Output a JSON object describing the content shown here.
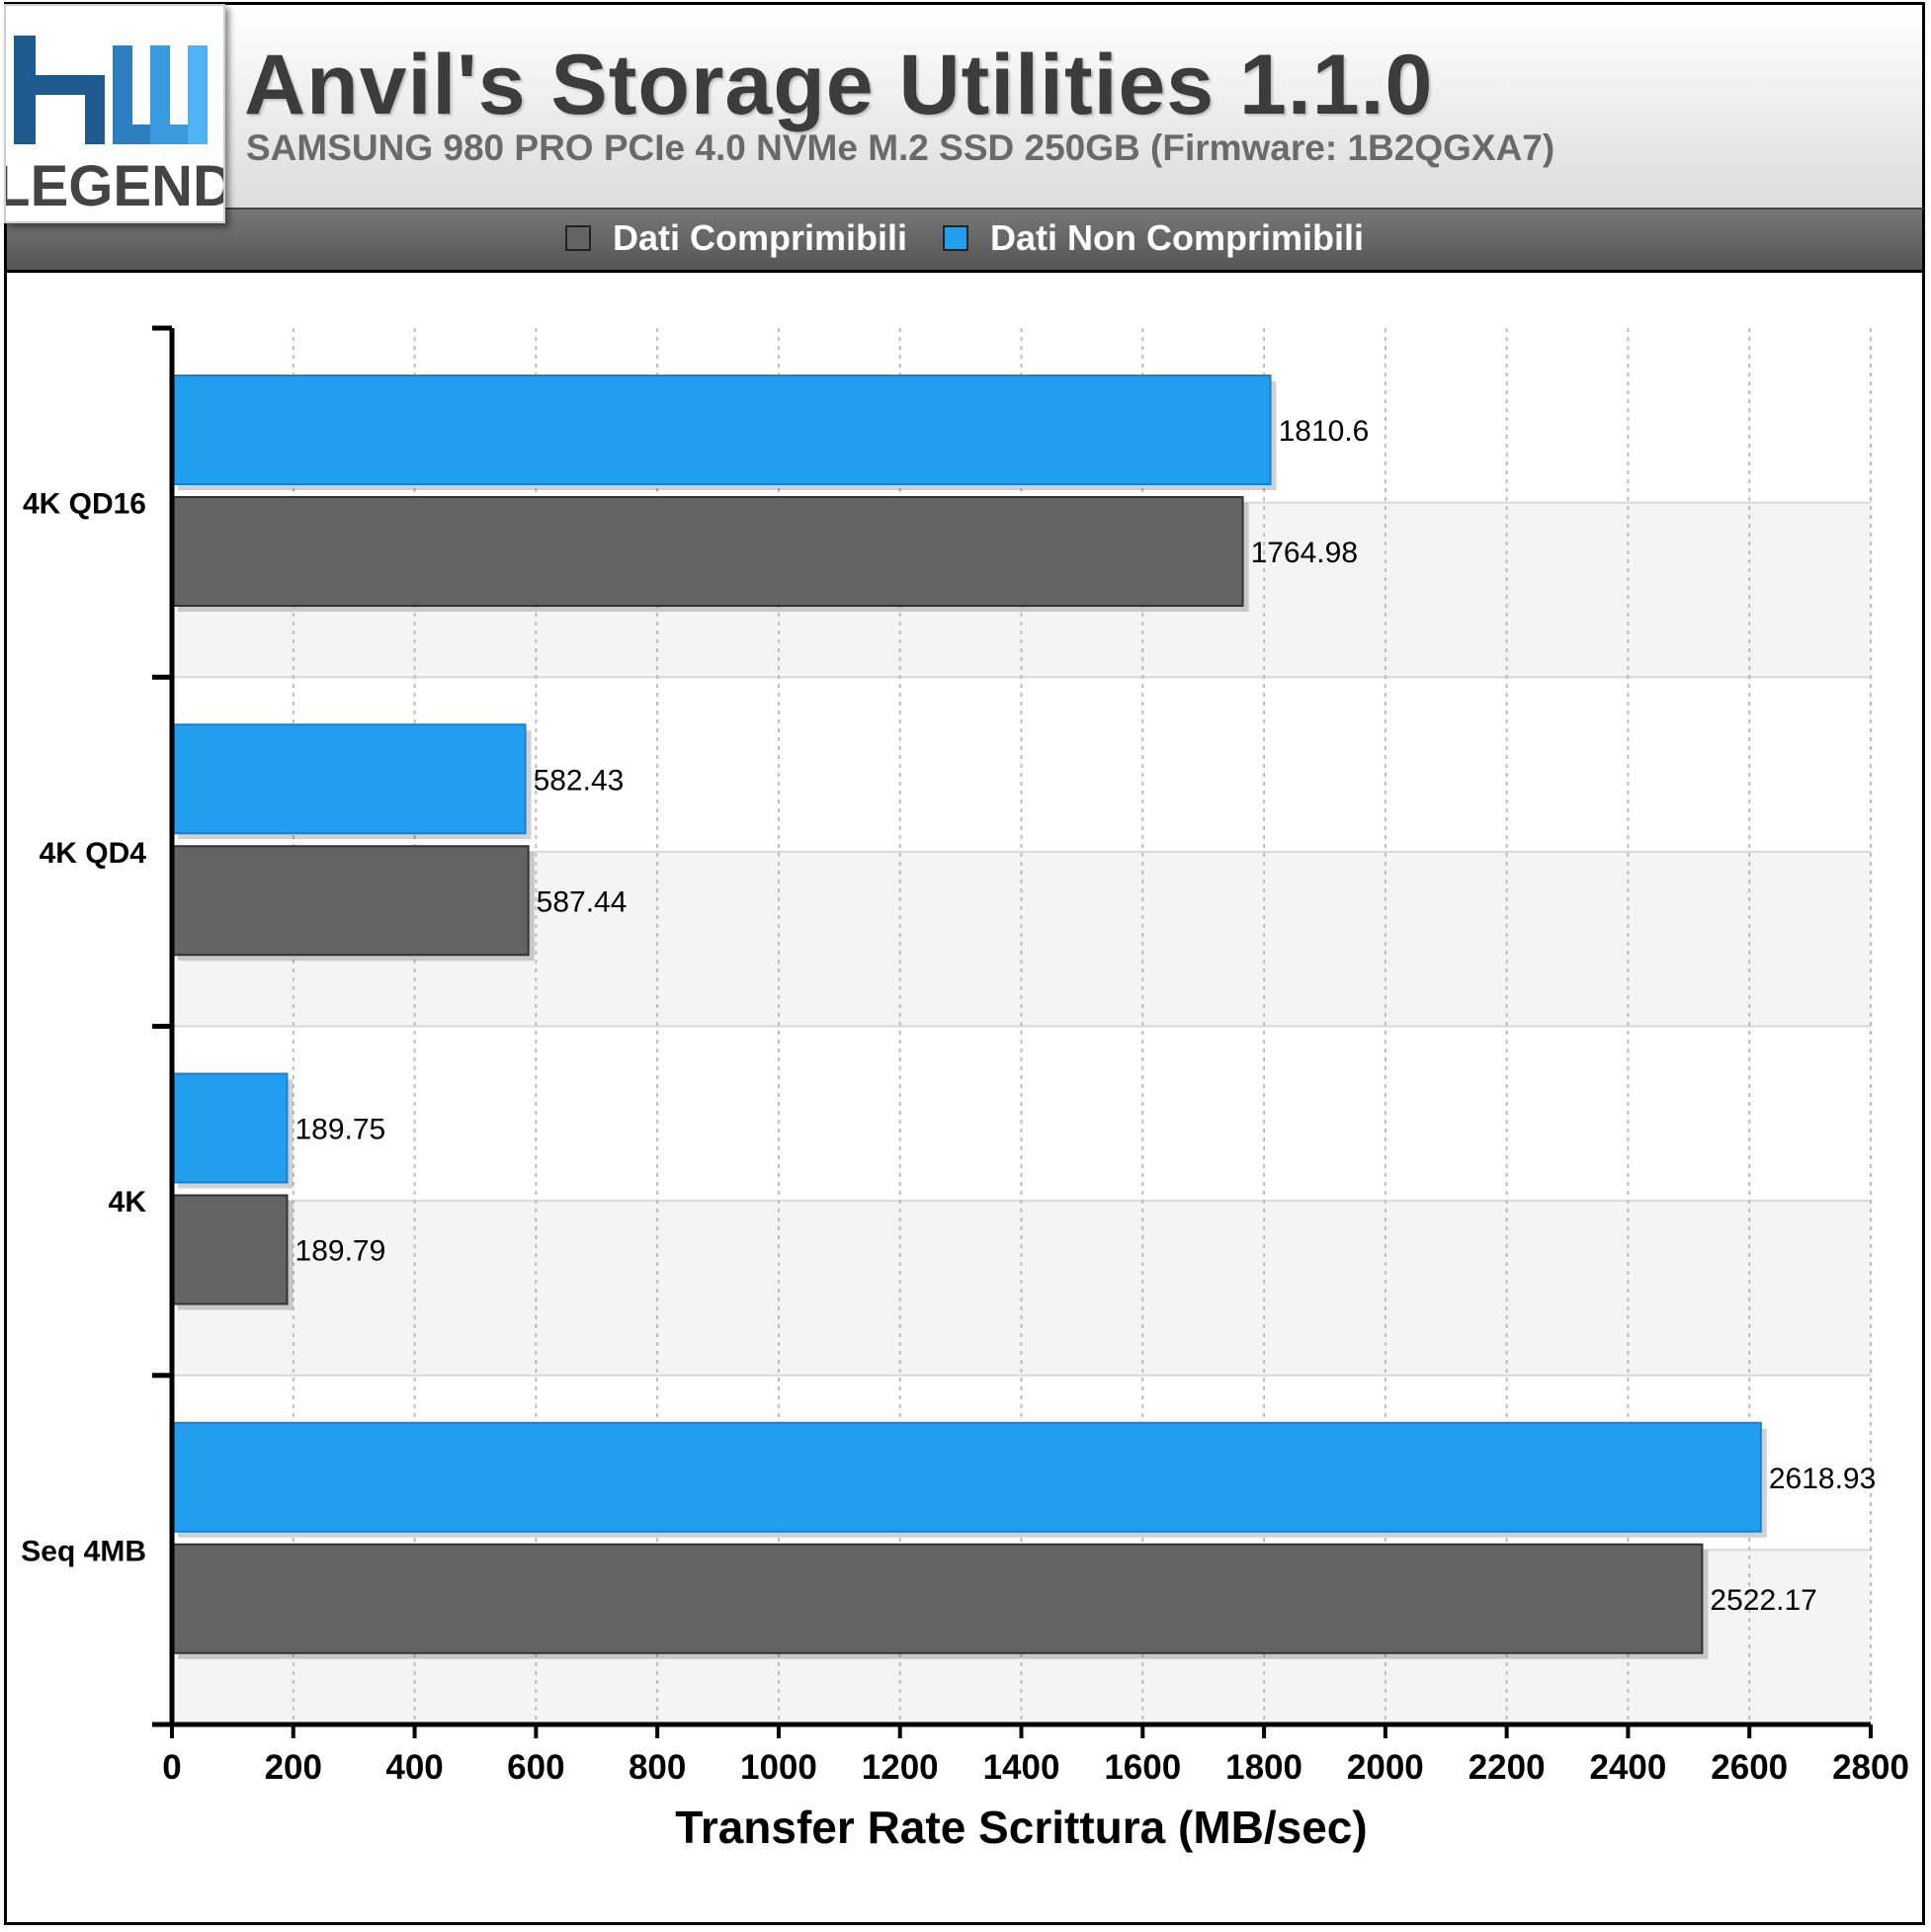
{
  "header": {
    "title": "Anvil's Storage Utilities 1.1.0",
    "subtitle": "SAMSUNG 980 PRO PCIe 4.0 NVMe M.2 SSD 250GB (Firmware: 1B2QGXA7)"
  },
  "logo": {
    "line1": "hw",
    "line2": "LEGEND"
  },
  "colors": {
    "compressible": "#636363",
    "incompressible": "#219fee",
    "grid_alt": "#f4f4f4"
  },
  "chart_data": {
    "type": "bar",
    "orientation": "horizontal",
    "categories": [
      "4K QD16",
      "4K QD4",
      "4K",
      "Seq 4MB"
    ],
    "series": [
      {
        "name": "Dati Non Comprimibili",
        "values": [
          1810.6,
          582.43,
          189.75,
          2618.93
        ]
      },
      {
        "name": "Dati Comprimibili",
        "values": [
          1764.98,
          587.44,
          189.79,
          2522.17
        ]
      }
    ],
    "value_labels": [
      [
        "1810.6",
        "582.43",
        "189.75",
        "2618.93"
      ],
      [
        "1764.98",
        "587.44",
        "189.79",
        "2522.17"
      ]
    ],
    "legend": [
      "Dati Comprimibili",
      "Dati Non Comprimibili"
    ],
    "legend_placement": "top",
    "xlabel": "Transfer Rate Scrittura (MB/sec)",
    "ylabel": "",
    "xlim": [
      0,
      2800
    ],
    "x_ticks": [
      0,
      200,
      400,
      600,
      800,
      1000,
      1200,
      1400,
      1600,
      1800,
      2000,
      2200,
      2400,
      2600,
      2800
    ],
    "grid": true
  }
}
